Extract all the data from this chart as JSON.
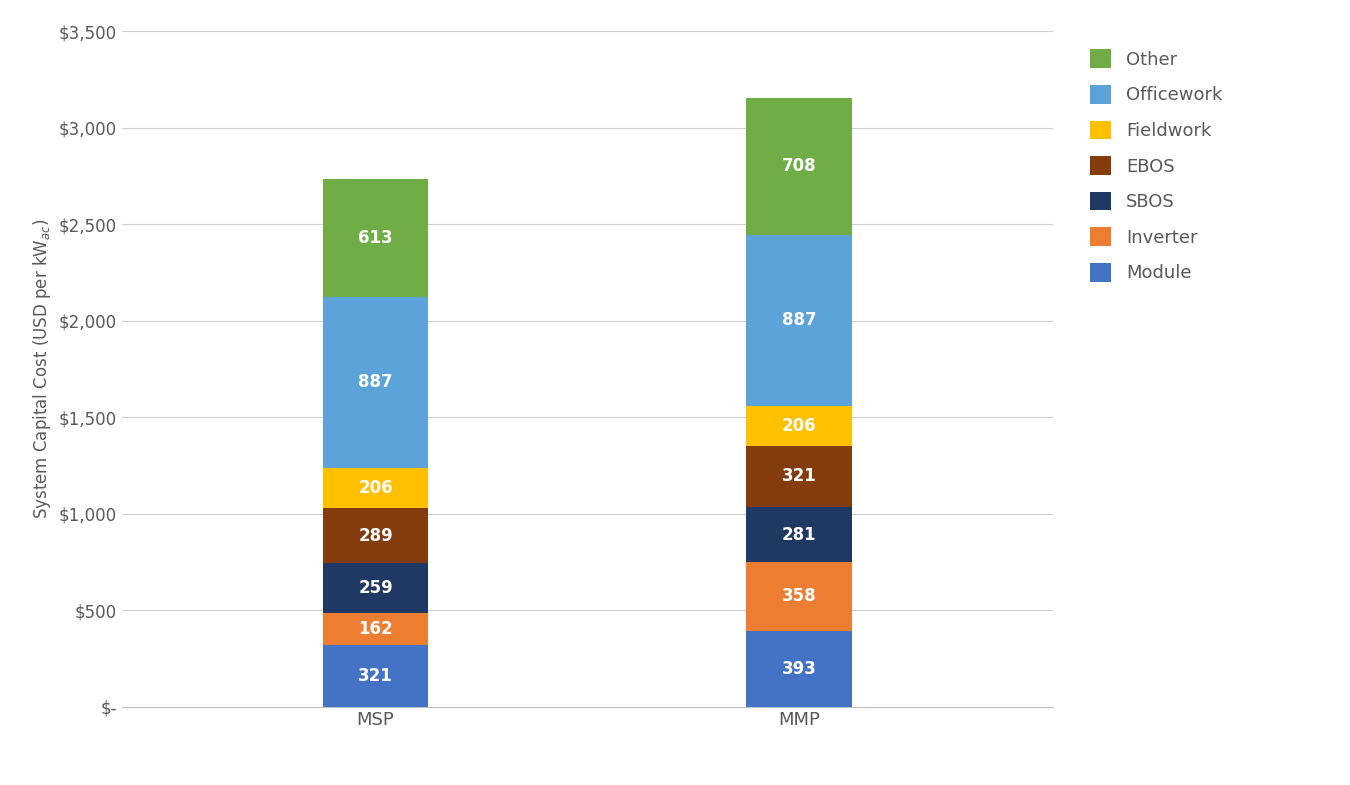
{
  "categories": [
    "MSP",
    "MMP"
  ],
  "series": [
    {
      "label": "Module",
      "values": [
        321,
        393
      ],
      "color": "#4472C4"
    },
    {
      "label": "Inverter",
      "values": [
        162,
        358
      ],
      "color": "#ED7D31"
    },
    {
      "label": "SBOS",
      "values": [
        259,
        281
      ],
      "color": "#1F3864"
    },
    {
      "label": "EBOS",
      "values": [
        289,
        321
      ],
      "color": "#843C0C"
    },
    {
      "label": "Fieldwork",
      "values": [
        206,
        206
      ],
      "color": "#FFC000"
    },
    {
      "label": "Officework",
      "values": [
        887,
        887
      ],
      "color": "#5BA3D9"
    },
    {
      "label": "Other",
      "values": [
        613,
        708
      ],
      "color": "#70AD47"
    }
  ],
  "ylim": [
    0,
    3500
  ],
  "yticks": [
    0,
    500,
    1000,
    1500,
    2000,
    2500,
    3000,
    3500
  ],
  "ytick_labels": [
    "$-",
    "$500",
    "$1,000",
    "$1,500",
    "$2,000",
    "$2,500",
    "$3,000",
    "$3,500"
  ],
  "background_color": "#FFFFFF",
  "bar_width": 0.25,
  "label_color": "#FFFFFF",
  "label_fontsize": 12,
  "axis_label_fontsize": 12,
  "tick_fontsize": 12,
  "legend_fontsize": 13,
  "grid_color": "#D0D0D0",
  "spine_color": "#C0C0C0",
  "text_color": "#595959"
}
